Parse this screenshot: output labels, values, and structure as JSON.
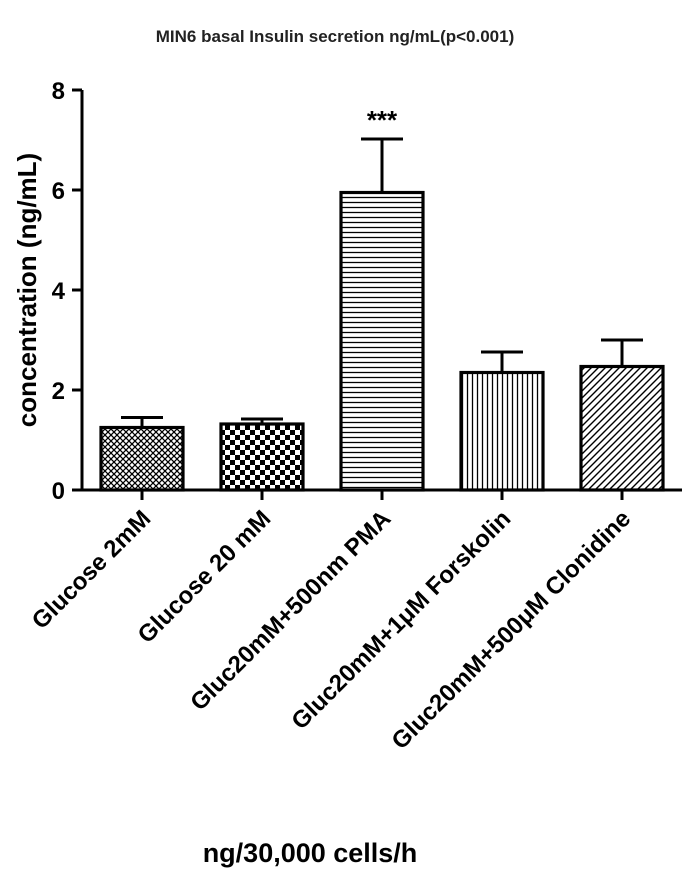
{
  "chart_data": {
    "type": "bar",
    "title": "MIN6 basal Insulin secretion ng/mL(p<0.001)",
    "xlabel": "ng/30,000 cells/h",
    "ylabel": "concentration (ng/mL)",
    "ylim": [
      0,
      8
    ],
    "yticks": [
      0,
      2,
      4,
      6,
      8
    ],
    "grid": false,
    "categories": [
      "Glucose 2mM",
      "Glucose 20 mM",
      "Gluc20mM+500nm PMA",
      "Gluc20mM+1μM Forskolin",
      "Gluc20mM+500μM Clonidine"
    ],
    "values": [
      1.25,
      1.32,
      5.95,
      2.35,
      2.47
    ],
    "error_upper": [
      1.45,
      1.42,
      7.02,
      2.76,
      3.0
    ],
    "patterns": [
      "crosshatch",
      "checker",
      "horizontal",
      "vertical",
      "diagonal"
    ],
    "annotations": [
      {
        "category": "Gluc20mM+500nm PMA",
        "text": "***"
      }
    ]
  }
}
